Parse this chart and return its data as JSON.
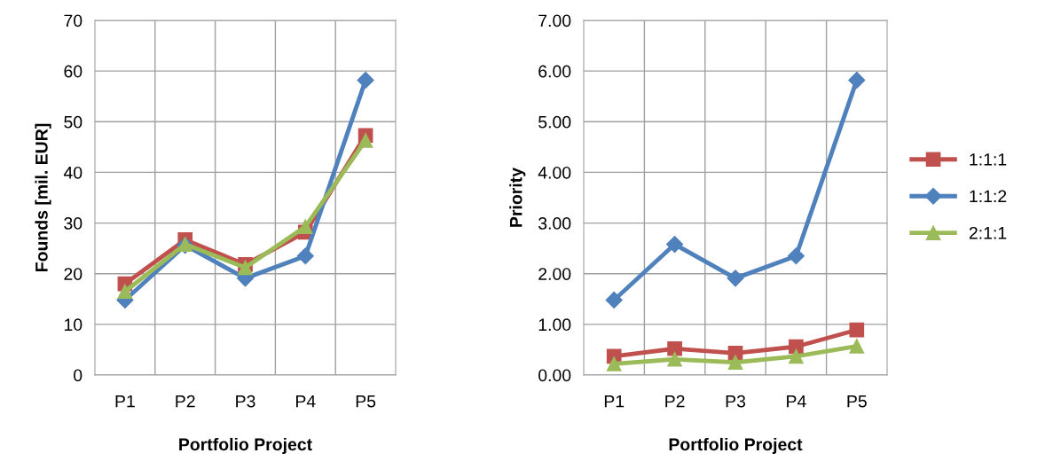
{
  "chart_data": [
    {
      "type": "line",
      "xlabel": "Portfolio Project",
      "ylabel": "Founds [mil. EUR]",
      "categories": [
        "P1",
        "P2",
        "P3",
        "P4",
        "P5"
      ],
      "ylim": [
        0,
        70
      ],
      "yticks": [
        0,
        10,
        20,
        30,
        40,
        50,
        60,
        70
      ],
      "grid": true,
      "legend": false,
      "series": [
        {
          "color": "#c0504d",
          "marker": "square",
          "values": [
            18.0,
            26.7,
            21.8,
            28.2,
            47.3
          ]
        },
        {
          "color": "#4f81bd",
          "marker": "diamond",
          "values": [
            14.8,
            25.6,
            19.1,
            23.5,
            58.2
          ]
        },
        {
          "color": "#9bbb59",
          "marker": "triangle",
          "values": [
            16.5,
            25.8,
            21.2,
            29.3,
            46.3
          ]
        }
      ]
    },
    {
      "type": "line",
      "xlabel": "Portfolio Project",
      "ylabel": "Priority",
      "categories": [
        "P1",
        "P2",
        "P3",
        "P4",
        "P5"
      ],
      "ylim": [
        0,
        7
      ],
      "yticks": [
        {
          "value": 0,
          "label": "0.00"
        },
        {
          "value": 1,
          "label": "1.00"
        },
        {
          "value": 2,
          "label": "2.00"
        },
        {
          "value": 3,
          "label": "3.00"
        },
        {
          "value": 4,
          "label": "4.00"
        },
        {
          "value": 5,
          "label": "5.00"
        },
        {
          "value": 6,
          "label": "6.00"
        },
        {
          "value": 7,
          "label": "7.00"
        }
      ],
      "grid": true,
      "legend": "right",
      "series": [
        {
          "name": "1:1:1",
          "color": "#c0504d",
          "marker": "square",
          "values": [
            0.37,
            0.52,
            0.43,
            0.56,
            0.89
          ]
        },
        {
          "name": "1:1:2",
          "color": "#4f81bd",
          "marker": "diamond",
          "values": [
            1.48,
            2.58,
            1.91,
            2.35,
            5.82
          ]
        },
        {
          "name": "2:1:1",
          "color": "#9bbb59",
          "marker": "triangle",
          "values": [
            0.22,
            0.31,
            0.25,
            0.37,
            0.57
          ]
        }
      ]
    }
  ]
}
